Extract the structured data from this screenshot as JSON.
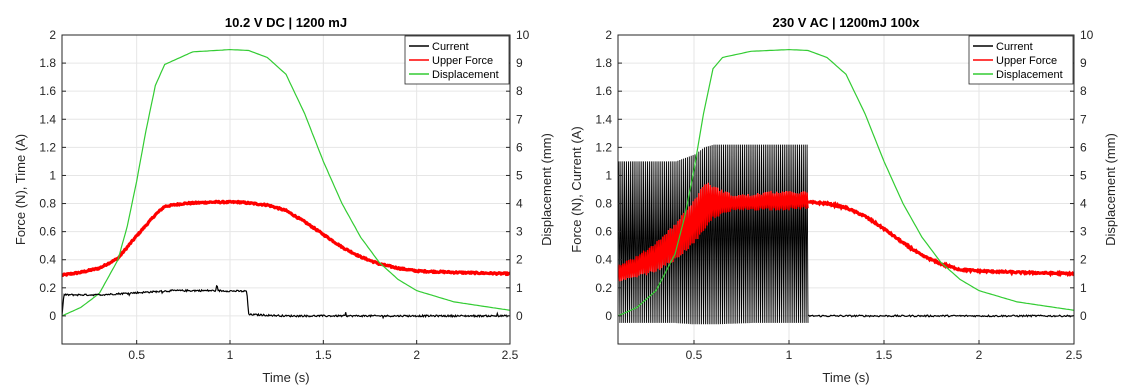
{
  "chart_data": [
    {
      "type": "line",
      "title": "10.2 V DC | 1200 mJ",
      "xlabel": "Time (s)",
      "ylabel_left": "Force (N), Time (A)",
      "ylabel_right": "Displacement (mm)",
      "xlim": [
        0.1,
        2.5
      ],
      "ylim_left": [
        -0.2,
        2.0
      ],
      "ylim_right": [
        -1,
        10
      ],
      "xticks": [
        "0.5",
        "1",
        "1.5",
        "2",
        "2.5"
      ],
      "yticks_left": [
        "0",
        "0.2",
        "0.4",
        "0.6",
        "0.8",
        "1",
        "1.2",
        "1.4",
        "1.6",
        "1.8",
        "2"
      ],
      "yticks_right": [
        "0",
        "1",
        "2",
        "3",
        "4",
        "5",
        "6",
        "7",
        "8",
        "9",
        "10"
      ],
      "grid": true,
      "legend_position": "top-right",
      "legend": [
        "Current",
        "Upper Force",
        "Displacement"
      ],
      "colors": {
        "current": "#000000",
        "force": "#ff0000",
        "displacement": "#33cc33"
      },
      "series": [
        {
          "name": "Current",
          "axis": "left",
          "x": [
            0.1,
            0.11,
            0.3,
            0.5,
            0.7,
            0.9,
            1.09,
            1.1,
            1.3,
            1.6,
            2.0,
            2.5
          ],
          "y": [
            0.0,
            0.15,
            0.15,
            0.165,
            0.18,
            0.18,
            0.175,
            0.01,
            0.0,
            0.0,
            0.0,
            0.0
          ]
        },
        {
          "name": "Upper Force",
          "axis": "left",
          "x": [
            0.1,
            0.2,
            0.3,
            0.4,
            0.5,
            0.6,
            0.65,
            0.75,
            0.9,
            1.05,
            1.2,
            1.3,
            1.4,
            1.5,
            1.6,
            1.7,
            1.8,
            1.9,
            2.0,
            2.2,
            2.5
          ],
          "y": [
            0.29,
            0.31,
            0.34,
            0.41,
            0.57,
            0.72,
            0.78,
            0.8,
            0.81,
            0.81,
            0.79,
            0.75,
            0.67,
            0.58,
            0.49,
            0.42,
            0.37,
            0.34,
            0.32,
            0.31,
            0.3
          ]
        },
        {
          "name": "Displacement",
          "axis": "right",
          "x": [
            0.1,
            0.2,
            0.3,
            0.4,
            0.45,
            0.5,
            0.55,
            0.6,
            0.65,
            0.8,
            1.0,
            1.1,
            1.2,
            1.3,
            1.4,
            1.5,
            1.6,
            1.7,
            1.8,
            1.9,
            2.0,
            2.2,
            2.5
          ],
          "y": [
            0.0,
            0.3,
            0.8,
            2.0,
            3.2,
            4.8,
            6.6,
            8.2,
            8.95,
            9.4,
            9.48,
            9.45,
            9.2,
            8.6,
            7.2,
            5.5,
            4.0,
            2.8,
            1.9,
            1.3,
            0.9,
            0.5,
            0.2
          ]
        }
      ]
    },
    {
      "type": "line",
      "title": "230 V AC | 1200mJ 100x",
      "xlabel": "Time (s)",
      "ylabel_left": "Force (N), Current (A)",
      "ylabel_right": "Displacement (mm)",
      "xlim": [
        0.1,
        2.5
      ],
      "ylim_left": [
        -0.2,
        2.0
      ],
      "ylim_right": [
        -1,
        10
      ],
      "xticks": [
        "0.5",
        "1",
        "1.5",
        "2",
        "2.5"
      ],
      "yticks_left": [
        "0",
        "0.2",
        "0.4",
        "0.6",
        "0.8",
        "1",
        "1.2",
        "1.4",
        "1.6",
        "1.8",
        "2"
      ],
      "yticks_right": [
        "0",
        "1",
        "2",
        "3",
        "4",
        "5",
        "6",
        "7",
        "8",
        "9",
        "10"
      ],
      "grid": true,
      "legend_position": "top-right",
      "legend": [
        "Current",
        "Upper Force",
        "Displacement"
      ],
      "colors": {
        "current": "#000000",
        "force": "#ff0000",
        "displacement": "#33cc33"
      },
      "current_envelope": {
        "x": [
          0.1,
          0.4,
          0.5,
          0.55,
          0.6,
          0.8,
          1.1
        ],
        "upper": [
          1.1,
          1.1,
          1.15,
          1.2,
          1.22,
          1.22,
          1.22
        ],
        "lower": [
          -0.05,
          -0.05,
          -0.06,
          -0.06,
          -0.06,
          -0.05,
          -0.05
        ],
        "baseline_after": 0.0
      },
      "force_band": {
        "x": [
          0.1,
          0.2,
          0.3,
          0.4,
          0.5,
          0.56,
          0.6,
          0.7,
          0.8,
          0.9,
          1.0,
          1.1
        ],
        "upper": [
          0.36,
          0.42,
          0.52,
          0.65,
          0.82,
          0.95,
          0.92,
          0.86,
          0.86,
          0.88,
          0.88,
          0.88
        ],
        "lower": [
          0.24,
          0.28,
          0.32,
          0.4,
          0.52,
          0.62,
          0.7,
          0.75,
          0.76,
          0.76,
          0.76,
          0.77
        ]
      },
      "series": [
        {
          "name": "Upper Force",
          "axis": "left",
          "x": [
            1.1,
            1.2,
            1.3,
            1.4,
            1.5,
            1.6,
            1.7,
            1.8,
            1.9,
            2.0,
            2.2,
            2.5
          ],
          "y": [
            0.81,
            0.8,
            0.77,
            0.71,
            0.62,
            0.52,
            0.43,
            0.37,
            0.33,
            0.32,
            0.31,
            0.3
          ]
        },
        {
          "name": "Displacement",
          "axis": "right",
          "x": [
            0.1,
            0.2,
            0.3,
            0.4,
            0.45,
            0.5,
            0.55,
            0.6,
            0.65,
            0.8,
            1.0,
            1.1,
            1.2,
            1.3,
            1.4,
            1.5,
            1.6,
            1.7,
            1.8,
            1.9,
            2.0,
            2.2,
            2.5
          ],
          "y": [
            0.0,
            0.3,
            0.9,
            2.2,
            3.5,
            5.2,
            7.2,
            8.8,
            9.2,
            9.42,
            9.48,
            9.45,
            9.2,
            8.6,
            7.2,
            5.5,
            4.0,
            2.8,
            1.9,
            1.3,
            0.9,
            0.5,
            0.2
          ]
        }
      ]
    }
  ]
}
